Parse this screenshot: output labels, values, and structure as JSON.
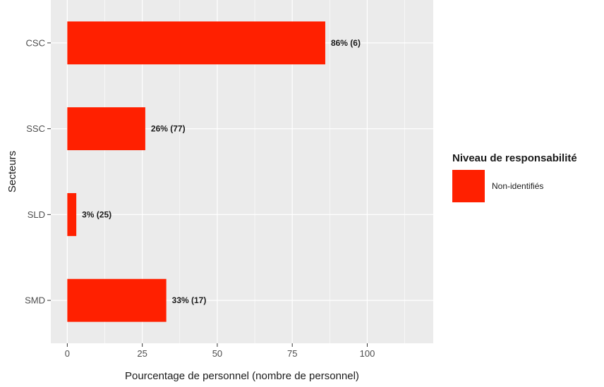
{
  "chart_data": {
    "type": "bar",
    "orientation": "horizontal",
    "categories": [
      "CSC",
      "SSC",
      "SLD",
      "SMD"
    ],
    "series": [
      {
        "name": "Non-identifiés",
        "values": [
          86,
          26,
          3,
          33
        ],
        "labels": [
          "86% (6)",
          "26% (77)",
          "3% (25)",
          "33% (17)"
        ],
        "color": "#ff2000"
      }
    ],
    "xlabel": "Pourcentage de personnel (nombre de personnel)",
    "ylabel": "Secteurs",
    "xlim": [
      -5.5,
      122
    ],
    "xticks": [
      0,
      25,
      50,
      75,
      100
    ],
    "grid": true,
    "legend": {
      "title": "Niveau de responsabilité",
      "placement": "right"
    },
    "colors": {
      "panel_background": "#ebebeb",
      "grid": "#ffffff",
      "bar": "#ff2000"
    }
  }
}
